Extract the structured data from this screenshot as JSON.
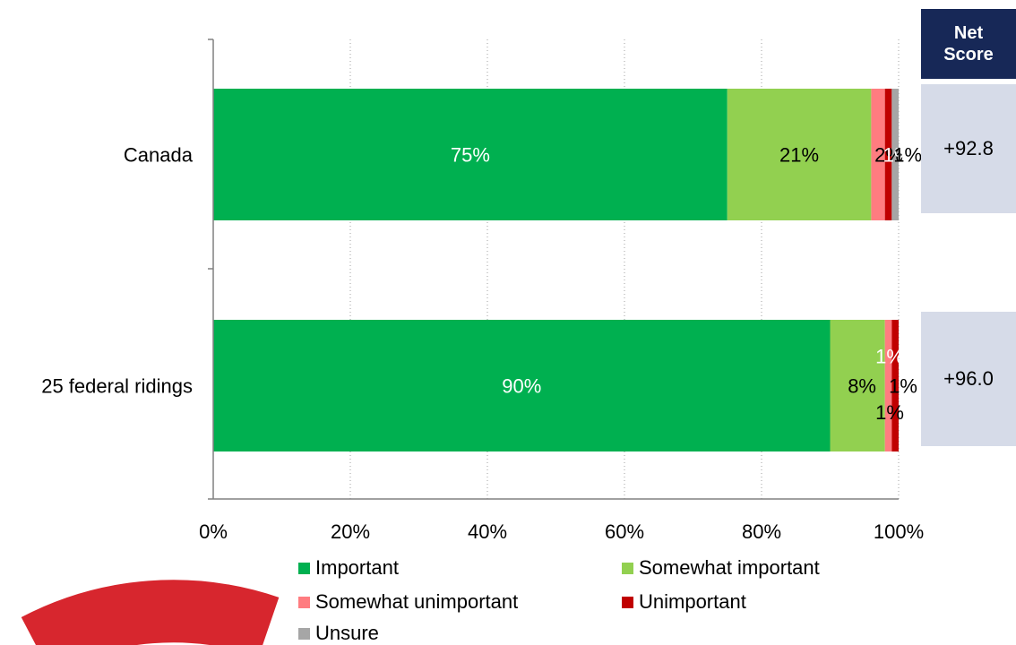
{
  "chart_data": {
    "type": "bar",
    "orientation": "horizontal",
    "stacked": true,
    "categories": [
      "Canada",
      "25 federal ridings"
    ],
    "series": [
      {
        "name": "Important",
        "values": [
          75,
          90
        ],
        "labels": [
          "75%",
          "90%"
        ],
        "color": "#00b050",
        "label_color": "#ffffff"
      },
      {
        "name": "Somewhat important",
        "values": [
          21,
          8
        ],
        "labels": [
          "21%",
          "8%"
        ],
        "color": "#92d050",
        "label_color": "#000000"
      },
      {
        "name": "Somewhat unimportant",
        "values": [
          2,
          1
        ],
        "labels": [
          "2%",
          "1%"
        ],
        "color": "#ff7c80",
        "label_color": "#000000"
      },
      {
        "name": "Unimportant",
        "values": [
          1,
          1
        ],
        "labels": [
          "1%",
          "1%"
        ],
        "color": "#c00000",
        "label_color": "#ffffff"
      },
      {
        "name": "Unsure",
        "values": [
          1,
          0
        ],
        "labels": [
          "1%",
          ""
        ],
        "color": "#a6a6a6",
        "label_color": "#000000"
      }
    ],
    "xlim": [
      0,
      100
    ],
    "x_ticks": [
      "0%",
      "20%",
      "40%",
      "60%",
      "80%",
      "100%"
    ],
    "grid": "vertical dotted",
    "legend_position": "bottom"
  },
  "net_score": {
    "header_line1": "Net",
    "header_line2": "Score",
    "values": [
      "+92.8",
      "+96.0"
    ]
  },
  "colors": {
    "net_header_bg": "#172857",
    "net_box_bg": "#d6dbe8",
    "logo_red": "#d7262e"
  }
}
